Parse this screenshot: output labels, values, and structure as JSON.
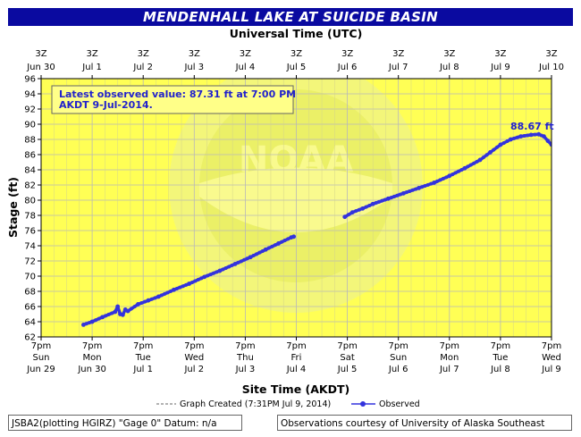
{
  "chart_data": {
    "type": "line",
    "title": "MENDENHALL LAKE AT SUICIDE BASIN",
    "top_axis_title": "Universal Time (UTC)",
    "top_ticks": [
      {
        "line1": "3Z",
        "line2": "Jun 30"
      },
      {
        "line1": "3Z",
        "line2": "Jul 1"
      },
      {
        "line1": "3Z",
        "line2": "Jul 2"
      },
      {
        "line1": "3Z",
        "line2": "Jul 3"
      },
      {
        "line1": "3Z",
        "line2": "Jul 4"
      },
      {
        "line1": "3Z",
        "line2": "Jul 5"
      },
      {
        "line1": "3Z",
        "line2": "Jul 6"
      },
      {
        "line1": "3Z",
        "line2": "Jul 7"
      },
      {
        "line1": "3Z",
        "line2": "Jul 8"
      },
      {
        "line1": "3Z",
        "line2": "Jul 9"
      },
      {
        "line1": "3Z",
        "line2": "Jul 10"
      }
    ],
    "bottom_axis_title": "Site Time (AKDT)",
    "bottom_ticks": [
      {
        "line1": "7pm",
        "line2": "Sun",
        "line3": "Jun 29"
      },
      {
        "line1": "7pm",
        "line2": "Mon",
        "line3": "Jun 30"
      },
      {
        "line1": "7pm",
        "line2": "Tue",
        "line3": "Jul 1"
      },
      {
        "line1": "7pm",
        "line2": "Wed",
        "line3": "Jul 2"
      },
      {
        "line1": "7pm",
        "line2": "Thu",
        "line3": "Jul 3"
      },
      {
        "line1": "7pm",
        "line2": "Fri",
        "line3": "Jul 4"
      },
      {
        "line1": "7pm",
        "line2": "Sat",
        "line3": "Jul 5"
      },
      {
        "line1": "7pm",
        "line2": "Sun",
        "line3": "Jul 6"
      },
      {
        "line1": "7pm",
        "line2": "Mon",
        "line3": "Jul 7"
      },
      {
        "line1": "7pm",
        "line2": "Tue",
        "line3": "Jul 8"
      },
      {
        "line1": "7pm",
        "line2": "Wed",
        "line3": "Jul 9"
      }
    ],
    "ylabel": "Stage (ft)",
    "ylim": [
      62,
      96
    ],
    "yticks": [
      62,
      64,
      66,
      68,
      70,
      72,
      74,
      76,
      78,
      80,
      82,
      84,
      86,
      88,
      90,
      92,
      94,
      96
    ],
    "xlim_days": [
      0,
      10
    ],
    "grid": true,
    "annotation": {
      "line1": "Latest observed value: 87.31 ft at 7:00 PM",
      "line2": "AKDT 9-Jul-2014."
    },
    "peak_label": "88.67 ft",
    "series": [
      {
        "name": "Observed",
        "color": "#3333dd",
        "points": [
          [
            0.83,
            63.6
          ],
          [
            1.0,
            64.0
          ],
          [
            1.2,
            64.6
          ],
          [
            1.45,
            65.3
          ],
          [
            1.5,
            66.0
          ],
          [
            1.55,
            65.0
          ],
          [
            1.6,
            64.9
          ],
          [
            1.65,
            65.6
          ],
          [
            1.7,
            65.4
          ],
          [
            1.9,
            66.3
          ],
          [
            2.1,
            66.8
          ],
          [
            2.3,
            67.3
          ],
          [
            2.6,
            68.2
          ],
          [
            2.9,
            69.0
          ],
          [
            3.2,
            69.9
          ],
          [
            3.5,
            70.7
          ],
          [
            3.8,
            71.6
          ],
          [
            4.1,
            72.5
          ],
          [
            4.4,
            73.5
          ],
          [
            4.65,
            74.3
          ],
          [
            4.9,
            75.1
          ],
          [
            4.95,
            75.2
          ],
          [
            5.95,
            77.8
          ],
          [
            6.1,
            78.4
          ],
          [
            6.3,
            78.9
          ],
          [
            6.5,
            79.5
          ],
          [
            6.8,
            80.2
          ],
          [
            7.1,
            80.9
          ],
          [
            7.4,
            81.6
          ],
          [
            7.7,
            82.3
          ],
          [
            8.0,
            83.2
          ],
          [
            8.3,
            84.2
          ],
          [
            8.6,
            85.3
          ],
          [
            8.8,
            86.3
          ],
          [
            9.0,
            87.3
          ],
          [
            9.2,
            88.0
          ],
          [
            9.4,
            88.4
          ],
          [
            9.6,
            88.6
          ],
          [
            9.75,
            88.67
          ],
          [
            9.85,
            88.4
          ],
          [
            9.93,
            87.8
          ],
          [
            10.0,
            87.31
          ]
        ]
      }
    ],
    "legend": [
      {
        "label": "Graph Created (7:31PM Jul 9, 2014)",
        "style": "dashed"
      },
      {
        "label": "Observed",
        "style": "line-marker"
      }
    ]
  },
  "watermark_text": "NOAA",
  "footer": {
    "left": "JSBA2(plotting HGIRZ) \"Gage 0\" Datum: n/a",
    "right": "Observations courtesy of University of Alaska Southeast"
  },
  "colors": {
    "title_bg": "#0a0aa0",
    "plot_bg": "#ffff55",
    "grid": "#b8b8b8",
    "series": "#3333dd",
    "annotation_text": "#2222cc"
  }
}
